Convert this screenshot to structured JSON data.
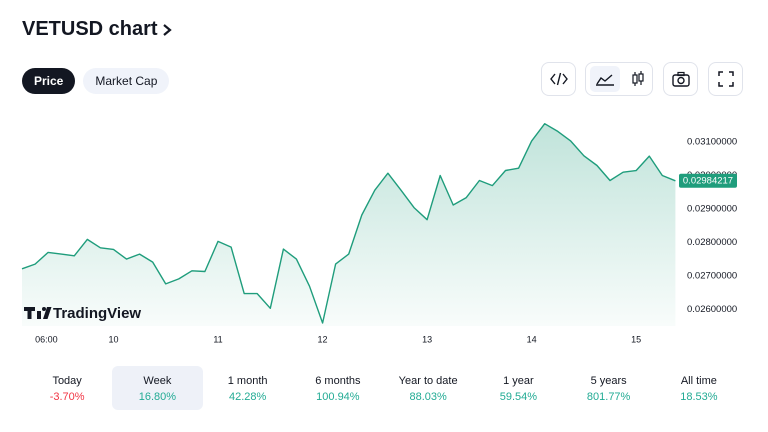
{
  "header": {
    "title": "VETUSD chart"
  },
  "tabs": [
    {
      "label": "Price"
    },
    {
      "label": "Market Cap"
    }
  ],
  "active_tab": 0,
  "chart_data": {
    "type": "area",
    "color": "#1f9d7c",
    "x": [
      9.125,
      9.25,
      9.375,
      9.5,
      9.625,
      9.75,
      9.875,
      10,
      10.125,
      10.25,
      10.375,
      10.5,
      10.625,
      10.75,
      10.875,
      11,
      11.125,
      11.25,
      11.375,
      11.5,
      11.625,
      11.75,
      11.875,
      12,
      12.125,
      12.25,
      12.375,
      12.5,
      12.625,
      12.75,
      12.875,
      13,
      13.125,
      13.25,
      13.375,
      13.5,
      13.625,
      13.75,
      13.875,
      14,
      14.125,
      14.25,
      14.375,
      14.5,
      14.625,
      14.75,
      14.875,
      15,
      15.125,
      15.25,
      15.375
    ],
    "values": [
      0.02721,
      0.02735,
      0.0277,
      0.02765,
      0.0276,
      0.02809,
      0.02784,
      0.02779,
      0.0275,
      0.02765,
      0.02741,
      0.02676,
      0.02691,
      0.02715,
      0.02713,
      0.02803,
      0.02786,
      0.02647,
      0.02647,
      0.02603,
      0.0278,
      0.0275,
      0.02669,
      0.02559,
      0.02735,
      0.02765,
      0.02882,
      0.02956,
      0.03007,
      0.02956,
      0.02904,
      0.02868,
      0.03,
      0.02912,
      0.02934,
      0.02985,
      0.0297,
      0.03015,
      0.03022,
      0.03103,
      0.03155,
      0.03132,
      0.03103,
      0.03059,
      0.0303,
      0.02985,
      0.0301,
      0.03015,
      0.03058,
      0.03,
      0.02984217
    ],
    "last_value": 0.02984217,
    "xlim": [
      9.125,
      15.4
    ],
    "xticks": [
      {
        "value": 9.25,
        "label": "06:00"
      },
      10,
      11,
      12,
      13,
      14,
      15
    ],
    "ylim": [
      0.0255,
      0.0319
    ],
    "yticks": [
      {
        "value": 0.026,
        "label": "0.02600000"
      },
      {
        "value": 0.027,
        "label": "0.02700000"
      },
      {
        "value": 0.028,
        "label": "0.02800000"
      },
      {
        "value": 0.029,
        "label": "0.02900000"
      },
      {
        "value": 0.03,
        "label": "0.03000000"
      },
      {
        "value": 0.031,
        "label": "0.03100000"
      }
    ],
    "watermark": "TradingView"
  },
  "periods": [
    {
      "label": "Today",
      "change": "-3.70%"
    },
    {
      "label": "Week",
      "change": "16.80%"
    },
    {
      "label": "1 month",
      "change": "42.28%"
    },
    {
      "label": "6 months",
      "change": "100.94%"
    },
    {
      "label": "Year to date",
      "change": "88.03%"
    },
    {
      "label": "1 year",
      "change": "59.54%"
    },
    {
      "label": "5 years",
      "change": "801.77%"
    },
    {
      "label": "All time",
      "change": "18.53%"
    }
  ],
  "active_period": 1
}
